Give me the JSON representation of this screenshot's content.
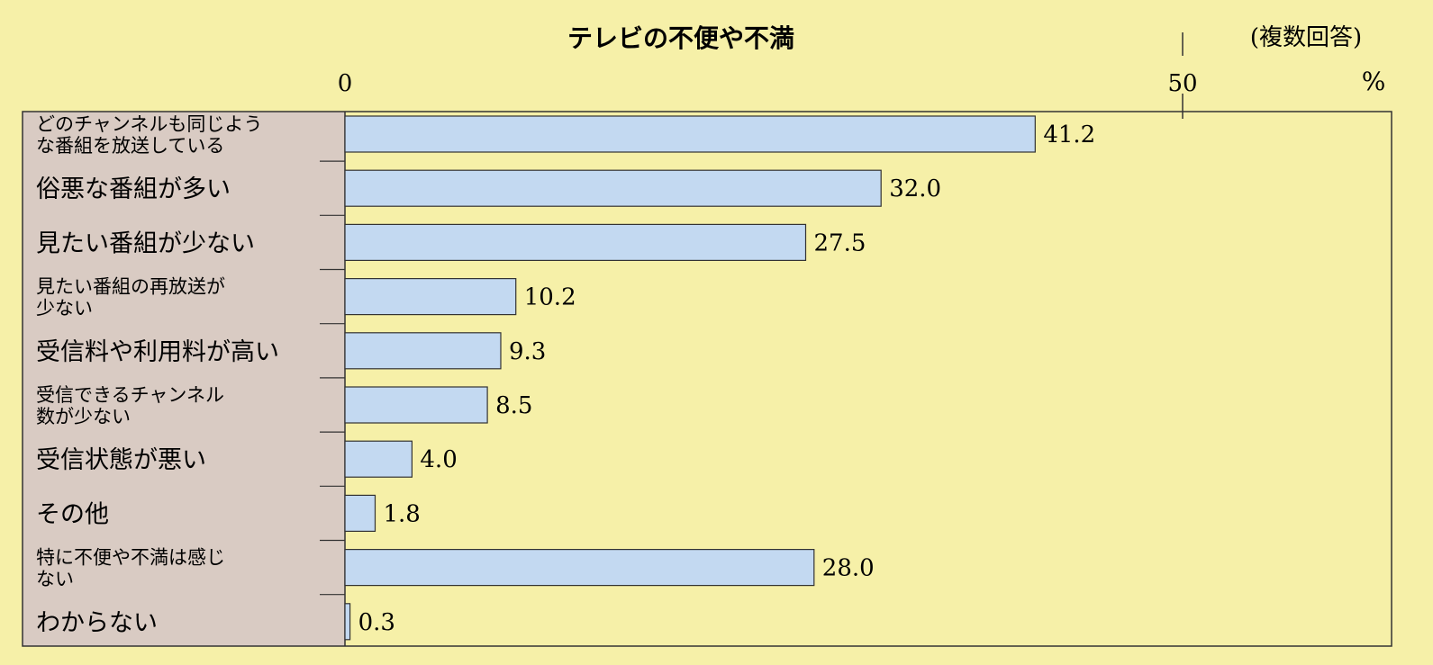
{
  "chart_data": {
    "type": "bar",
    "orientation": "horizontal",
    "title": "テレビの不便や不満",
    "note": "(複数回答)",
    "unit": "%",
    "xlim": [
      0,
      83
    ],
    "tick_values": [
      0,
      50
    ],
    "tick_labels": [
      "0",
      "50"
    ],
    "categories": [
      [
        "どのチャンネルも同じよう",
        "な番組を放送している"
      ],
      [
        "俗悪な番組が多い"
      ],
      [
        "見たい番組が少ない"
      ],
      [
        "見たい番組の再放送が",
        "少ない"
      ],
      [
        "受信料や利用料が高い"
      ],
      [
        "受信できるチャンネル",
        "数が少ない"
      ],
      [
        "受信状態が悪い"
      ],
      [
        "その他"
      ],
      [
        "特に不便や不満は感じ",
        "ない"
      ],
      [
        "わからない"
      ]
    ],
    "values": [
      41.2,
      32.0,
      27.5,
      10.2,
      9.3,
      8.5,
      4.0,
      1.8,
      28.0,
      0.3
    ],
    "value_labels": [
      "41.2",
      "32.0",
      "27.5",
      "10.2",
      "9.3",
      "8.5",
      "4.0",
      "1.8",
      "28.0",
      "0.3"
    ],
    "colors": {
      "background": "#f6f0a8",
      "label_panel": "#d9cbc3",
      "bar_fill": "#c3d9f1",
      "bar_stroke": "#333333",
      "frame": "#333333"
    }
  }
}
